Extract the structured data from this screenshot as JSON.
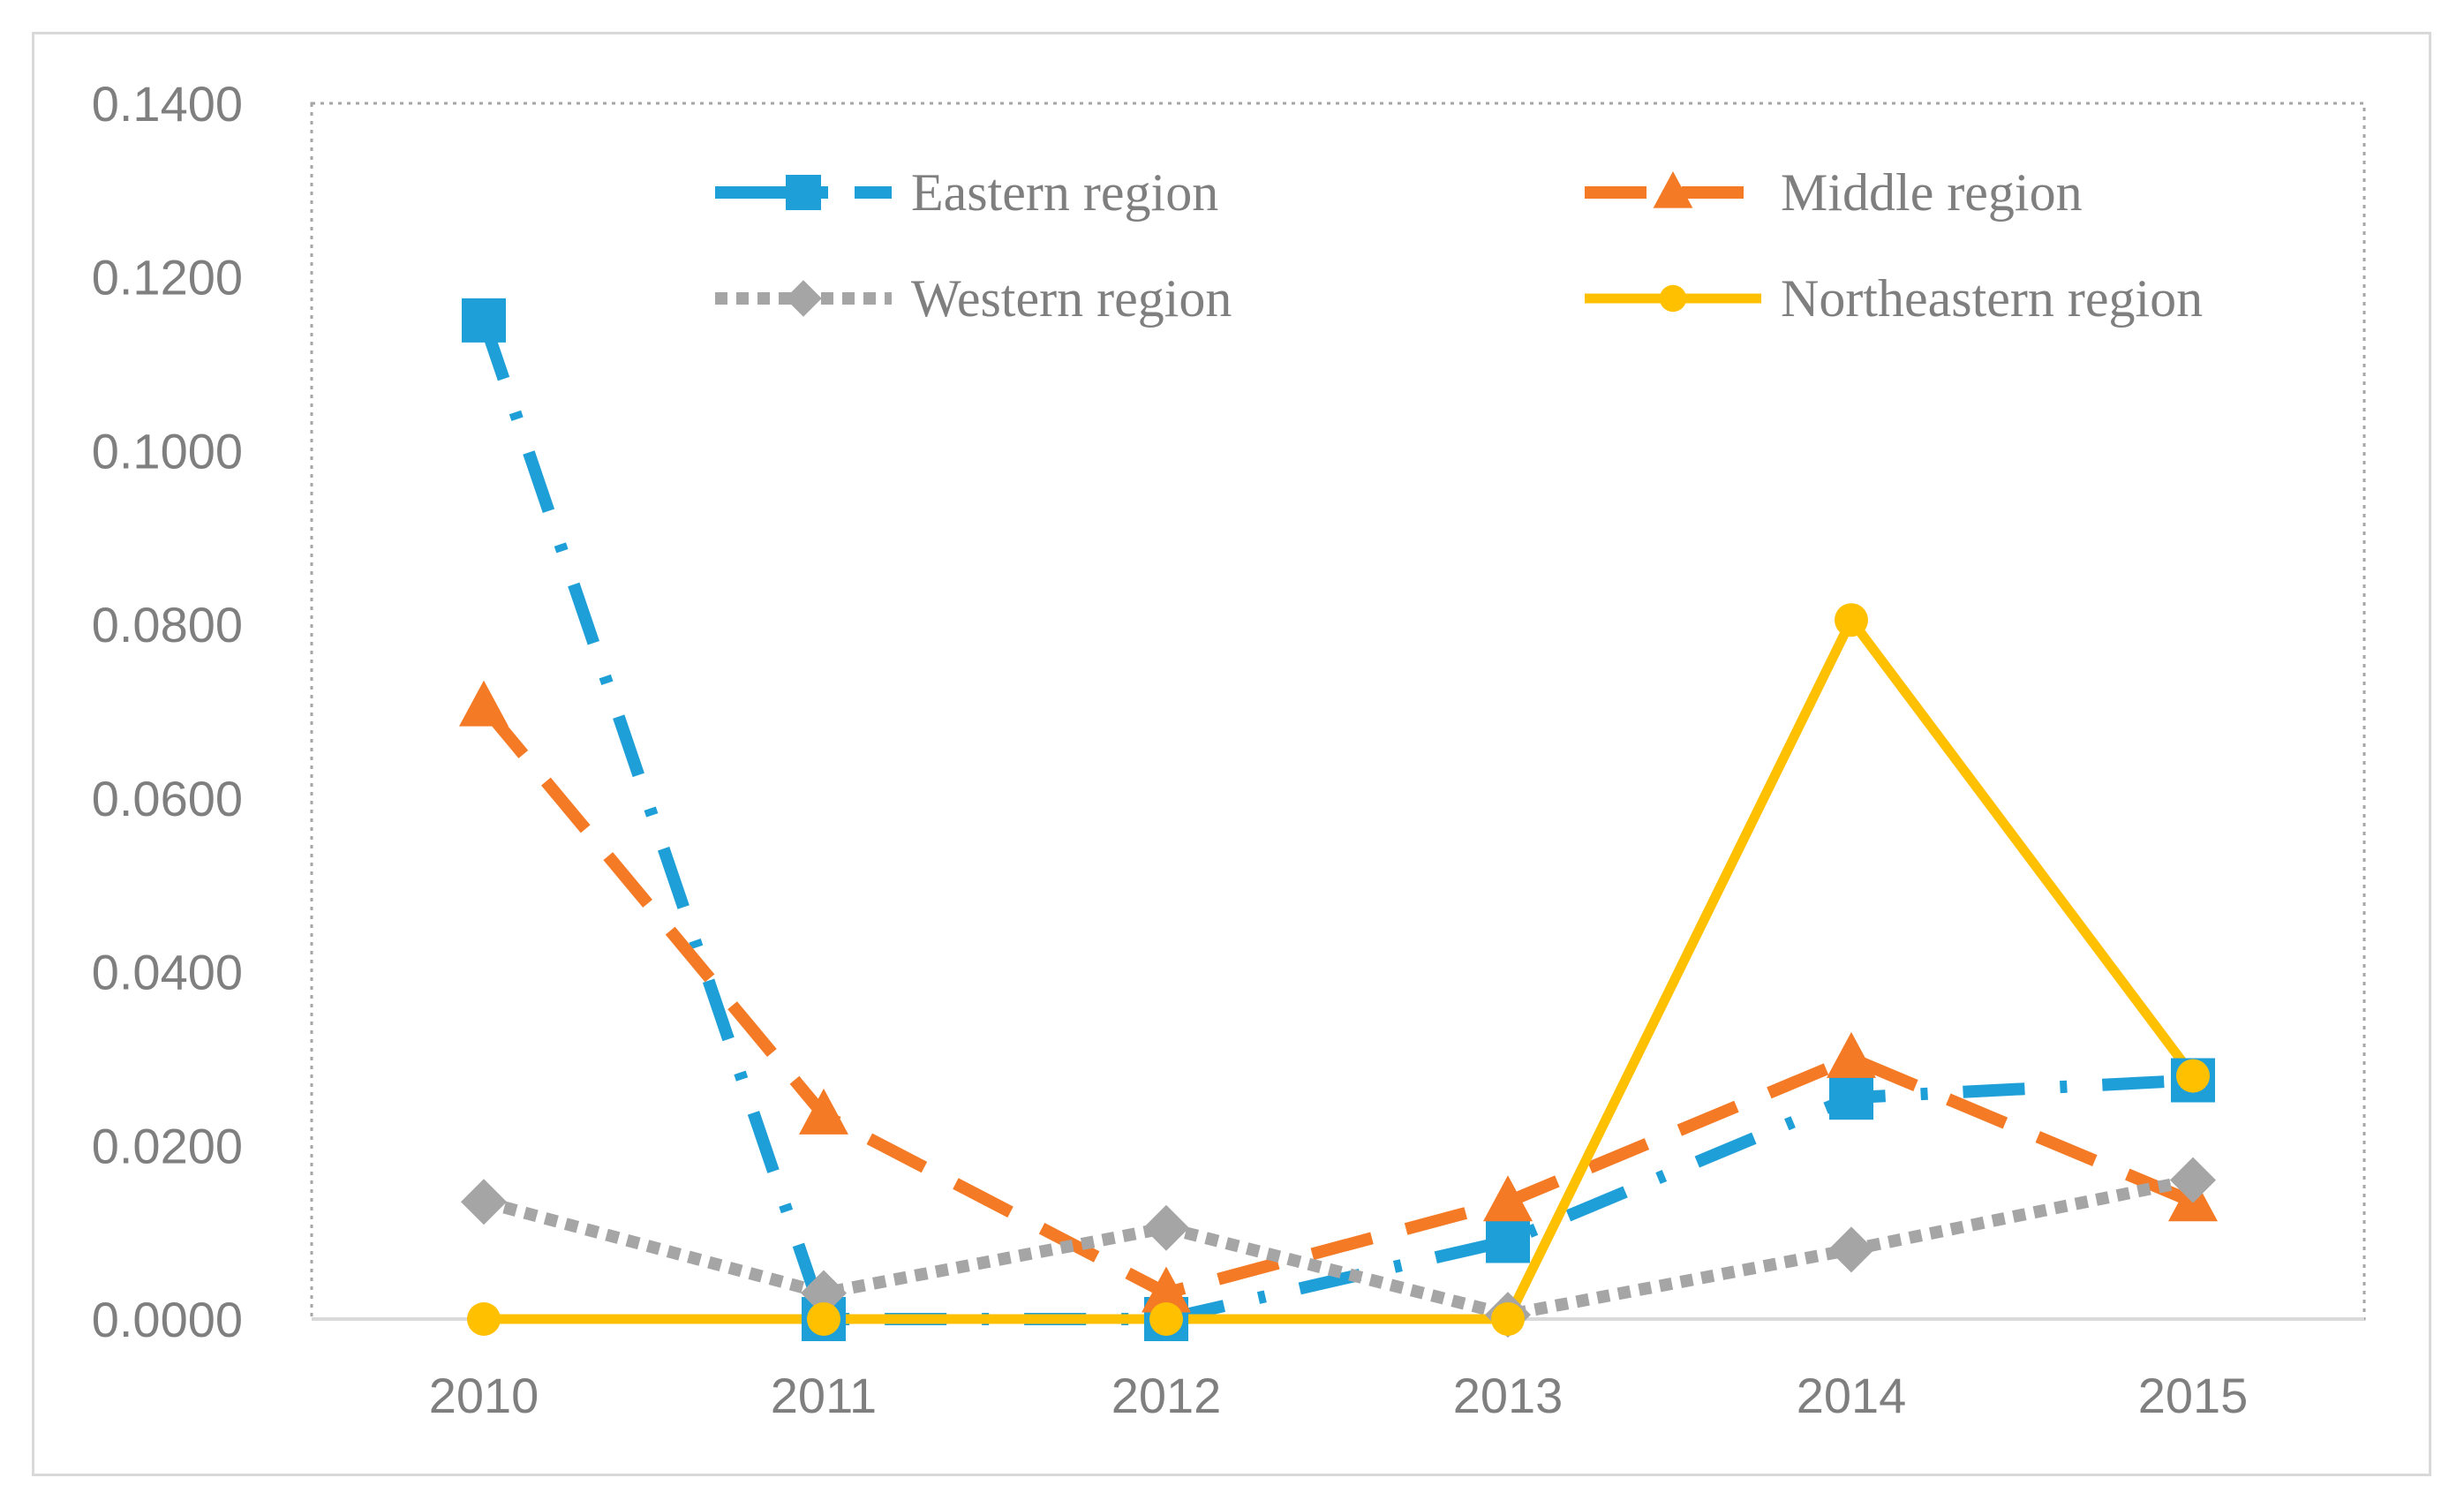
{
  "chart_data": {
    "type": "line",
    "title": "",
    "xlabel": "",
    "ylabel": "",
    "categories": [
      "2010",
      "2011",
      "2012",
      "2013",
      "2014",
      "2015"
    ],
    "ylim": [
      0,
      0.14
    ],
    "y_ticks": [
      0,
      0.02,
      0.04,
      0.06,
      0.08,
      0.1,
      0.12,
      0.14
    ],
    "y_tick_labels": [
      "0.0000",
      "0.0200",
      "0.0400",
      "0.0600",
      "0.0800",
      "0.1000",
      "0.1200",
      "0.1400"
    ],
    "legend_position": "top",
    "series": [
      {
        "name": "Eastern region",
        "values": [
          0.115,
          0.0,
          0.0,
          0.009,
          0.0255,
          0.0275
        ],
        "color": "#1f9fd8",
        "marker": "square",
        "dash": "dashdot"
      },
      {
        "name": "Middle region",
        "values": [
          0.0705,
          0.0235,
          0.003,
          0.0135,
          0.03,
          0.0135
        ],
        "color": "#f47a25",
        "marker": "triangle",
        "dash": "dashed"
      },
      {
        "name": "Western region",
        "values": [
          0.0135,
          0.003,
          0.0105,
          0.0005,
          0.008,
          0.016
        ],
        "color": "#a5a5a5",
        "marker": "diamond",
        "dash": "dotted"
      },
      {
        "name": "Northeastern region",
        "values": [
          0.0,
          0.0,
          0.0,
          0.0,
          0.0805,
          0.028
        ],
        "color": "#ffc000",
        "marker": "circle",
        "dash": "solid"
      }
    ]
  }
}
